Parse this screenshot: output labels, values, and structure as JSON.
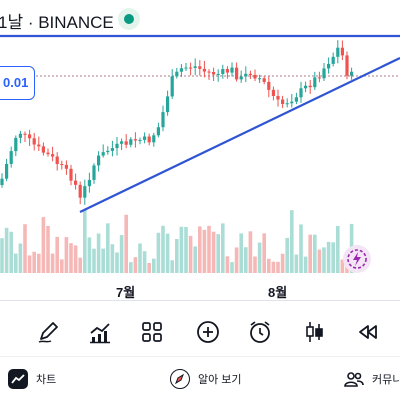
{
  "header": {
    "title": "1날 · BINANCE",
    "live_icon": "live-status-dot-icon"
  },
  "price_label": {
    "value": "0.01"
  },
  "chart_data": {
    "type": "candlestick",
    "x_ticks": [
      "7월",
      "8월"
    ],
    "colors": {
      "up": "#26a69a",
      "down": "#ef5350",
      "trendline": "#2f55d4",
      "price_line": "#b0788a"
    }
  },
  "toolbar": {
    "items": [
      {
        "icon": "pencil-icon"
      },
      {
        "icon": "indicators-icon"
      },
      {
        "icon": "grid-icon"
      },
      {
        "icon": "add-icon"
      },
      {
        "icon": "alarm-icon"
      },
      {
        "icon": "candles-icon"
      },
      {
        "icon": "replay-icon"
      }
    ]
  },
  "bottom_nav": {
    "items": [
      {
        "label": "차트",
        "icon": "chart-icon"
      },
      {
        "label": "알아 보기",
        "icon": "learn-icon"
      },
      {
        "label": "커뮤니티",
        "icon": "community-icon"
      }
    ]
  }
}
